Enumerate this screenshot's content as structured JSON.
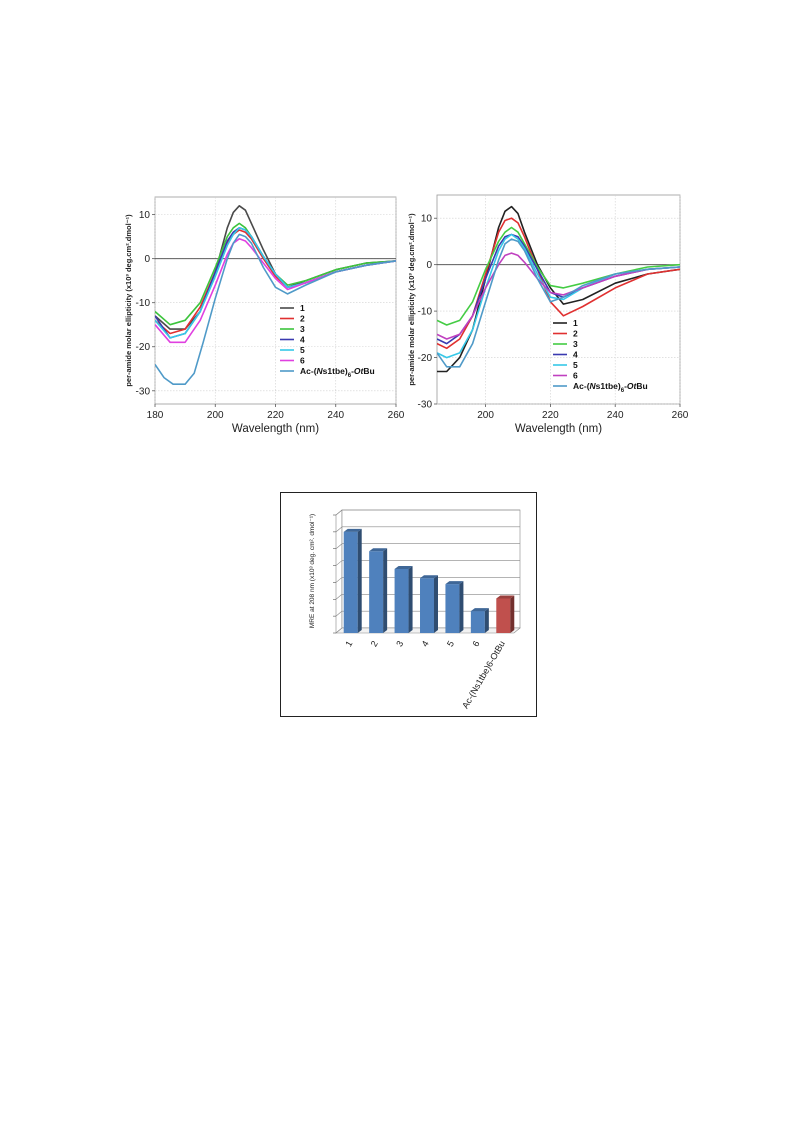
{
  "chart_data": [
    {
      "type": "line",
      "panel": "left",
      "xlabel": "Wavelength (nm)",
      "ylabel": "per-amide molar ellipticity (x10³ deg.cm².dmol⁻¹)",
      "xlim": [
        180,
        260
      ],
      "ylim": [
        -33,
        14
      ],
      "xticks": [
        180,
        200,
        220,
        240,
        260
      ],
      "yticks": [
        10,
        0,
        -10,
        -20,
        -30
      ],
      "xtick_labels": [
        "180",
        "200",
        "220",
        "240",
        "260"
      ],
      "ytick_labels": [
        "10",
        "0",
        "-10",
        "-20",
        "-30"
      ],
      "grid": true,
      "legend_position": "lower-center",
      "legend_labels": [
        "1",
        "2",
        "3",
        "4",
        "5",
        "6",
        "Ac-(Ns1tbe)6-OtBu"
      ],
      "series": [
        {
          "name": "1",
          "color": "#4a4a4a",
          "x": [
            180,
            185,
            190,
            195,
            200,
            204,
            206,
            208,
            210,
            212,
            216,
            220,
            224,
            230,
            240,
            250,
            260
          ],
          "y": [
            -13,
            -16,
            -16,
            -12,
            -3,
            7,
            10.5,
            12,
            11,
            8,
            2,
            -3.5,
            -6.5,
            -5,
            -2.5,
            -1,
            -0.5
          ]
        },
        {
          "name": "2",
          "color": "#e03030",
          "x": [
            180,
            185,
            190,
            195,
            200,
            204,
            206,
            208,
            210,
            212,
            216,
            220,
            224,
            230,
            240,
            250,
            260
          ],
          "y": [
            -14,
            -17,
            -16,
            -11,
            -3,
            3.5,
            5.5,
            6.5,
            6,
            4.5,
            0,
            -4,
            -6.5,
            -5.5,
            -3,
            -1.5,
            -0.5
          ]
        },
        {
          "name": "3",
          "color": "#3cc43c",
          "x": [
            180,
            185,
            190,
            195,
            200,
            204,
            206,
            208,
            210,
            212,
            216,
            220,
            224,
            230,
            240,
            250,
            260
          ],
          "y": [
            -12,
            -15,
            -14,
            -10,
            -2,
            5,
            7,
            8,
            7,
            5,
            0.5,
            -3.5,
            -6,
            -5,
            -2.5,
            -1,
            -0.5
          ]
        },
        {
          "name": "4",
          "color": "#3a3ab0",
          "x": [
            180,
            185,
            190,
            195,
            200,
            204,
            206,
            208,
            210,
            212,
            216,
            220,
            224,
            230,
            240,
            250,
            260
          ],
          "y": [
            -13,
            -18,
            -17,
            -12,
            -3,
            4,
            6,
            7,
            6.5,
            5,
            0.5,
            -3.5,
            -6.5,
            -5.5,
            -3,
            -1.5,
            -0.5
          ]
        },
        {
          "name": "5",
          "color": "#36c8e8",
          "x": [
            180,
            185,
            190,
            195,
            200,
            204,
            206,
            208,
            210,
            212,
            216,
            220,
            224,
            230,
            240,
            250,
            260
          ],
          "y": [
            -14,
            -18,
            -17,
            -12,
            -4,
            3,
            5.5,
            7,
            6.5,
            5,
            0.5,
            -3.5,
            -6.5,
            -5.5,
            -3,
            -1.5,
            -0.5
          ]
        },
        {
          "name": "6",
          "color": "#e040e0",
          "x": [
            180,
            185,
            190,
            195,
            200,
            204,
            206,
            208,
            210,
            212,
            216,
            220,
            224,
            230,
            240,
            250,
            260
          ],
          "y": [
            -15,
            -19,
            -19,
            -14,
            -6,
            1,
            3.5,
            4.5,
            4,
            2.5,
            -1,
            -4.5,
            -7,
            -5.5,
            -3,
            -1.5,
            -0.5
          ]
        },
        {
          "name": "Ac-(Ns1tbe)6-OtBu",
          "color": "#4f9ac8",
          "x": [
            180,
            183,
            186,
            190,
            193,
            196,
            200,
            204,
            206,
            208,
            210,
            212,
            216,
            220,
            224,
            230,
            240,
            250,
            260
          ],
          "y": [
            -24,
            -27,
            -28.5,
            -28.5,
            -26,
            -19,
            -9,
            0,
            3.5,
            5.5,
            5,
            3.5,
            -2,
            -6.5,
            -8,
            -6,
            -3,
            -1.5,
            -0.5
          ]
        }
      ]
    },
    {
      "type": "line",
      "panel": "right",
      "xlabel": "Wavelength (nm)",
      "ylabel": "per-amide molar ellipticity (x10³ deg.cm².dmol⁻¹)",
      "xlim": [
        185,
        260
      ],
      "ylim": [
        -30,
        15
      ],
      "xticks": [
        200,
        220,
        240,
        260
      ],
      "yticks": [
        10,
        0,
        -10,
        -20,
        -30
      ],
      "xtick_labels": [
        "200",
        "220",
        "240",
        "260"
      ],
      "ytick_labels": [
        "10",
        "0",
        "-10",
        "-20",
        "-30"
      ],
      "grid": true,
      "legend_position": "lower-center",
      "legend_labels": [
        "1",
        "2",
        "3",
        "4",
        "5",
        "6",
        "Ac-(Ns1tbe)6-OtBu"
      ],
      "series": [
        {
          "name": "1",
          "color": "#222222",
          "x": [
            185,
            188,
            192,
            196,
            200,
            204,
            206,
            208,
            210,
            212,
            216,
            220,
            224,
            230,
            240,
            250,
            260
          ],
          "y": [
            -23,
            -23,
            -20,
            -14,
            -3,
            8,
            11.5,
            12.5,
            11,
            7,
            0,
            -5,
            -8.5,
            -7.5,
            -4,
            -2,
            -1
          ]
        },
        {
          "name": "2",
          "color": "#e03030",
          "x": [
            185,
            188,
            192,
            196,
            200,
            204,
            206,
            208,
            210,
            212,
            216,
            220,
            224,
            230,
            240,
            250,
            260
          ],
          "y": [
            -17,
            -18,
            -16,
            -11,
            -2,
            7,
            9.5,
            10,
            9,
            6,
            -1,
            -8,
            -11,
            -9,
            -5,
            -2,
            -1
          ]
        },
        {
          "name": "3",
          "color": "#44cc44",
          "x": [
            185,
            188,
            192,
            196,
            200,
            204,
            206,
            208,
            210,
            212,
            216,
            220,
            224,
            230,
            240,
            250,
            260
          ],
          "y": [
            -12,
            -13,
            -12,
            -8,
            -1,
            5,
            7,
            8,
            7,
            4.5,
            -0.5,
            -4.5,
            -5,
            -4,
            -2,
            -0.5,
            0
          ]
        },
        {
          "name": "4",
          "color": "#3a3ab0",
          "x": [
            185,
            188,
            192,
            196,
            200,
            204,
            206,
            208,
            210,
            212,
            216,
            220,
            224,
            230,
            240,
            250,
            260
          ],
          "y": [
            -16,
            -17,
            -15,
            -11,
            -3,
            4,
            6,
            6.5,
            6,
            4,
            -1,
            -6,
            -7,
            -5,
            -2.5,
            -1,
            -0.5
          ]
        },
        {
          "name": "5",
          "color": "#36c8e8",
          "x": [
            185,
            188,
            192,
            196,
            200,
            204,
            206,
            208,
            210,
            212,
            216,
            220,
            224,
            230,
            240,
            250,
            260
          ],
          "y": [
            -19,
            -20,
            -19,
            -14,
            -5,
            3,
            5.5,
            6.5,
            5.5,
            3.5,
            -2,
            -7,
            -7.5,
            -5,
            -2,
            -1,
            -0.5
          ]
        },
        {
          "name": "6",
          "color": "#c040c0",
          "x": [
            185,
            188,
            192,
            196,
            200,
            204,
            206,
            208,
            210,
            212,
            216,
            220,
            224,
            230,
            240,
            250,
            260
          ],
          "y": [
            -15,
            -16,
            -15,
            -11,
            -5,
            0,
            2,
            2.5,
            2,
            0.5,
            -3,
            -6,
            -6.5,
            -5,
            -2.5,
            -1,
            -0.5
          ]
        },
        {
          "name": "Ac-(Ns1tbe)6-OtBu",
          "color": "#4f9ac8",
          "x": [
            185,
            188,
            192,
            196,
            200,
            204,
            206,
            208,
            210,
            212,
            216,
            220,
            224,
            230,
            240,
            250,
            260
          ],
          "y": [
            -19,
            -22,
            -22,
            -17,
            -8,
            1,
            4.5,
            5.5,
            5,
            3,
            -3,
            -8,
            -7,
            -4.5,
            -2,
            -1,
            -0.5
          ]
        }
      ]
    },
    {
      "type": "bar",
      "panel": "bottom",
      "ylabel": "MRE at 208 nm (x10³ deg. cm². dmol⁻¹)",
      "categories": [
        "1",
        "2",
        "3",
        "4",
        "5",
        "6",
        "Ac-(Ns1tbe)6-OtBu"
      ],
      "values": [
        12,
        9.7,
        7.6,
        6.5,
        5.8,
        2.6,
        4.1
      ],
      "ylim": [
        0,
        14
      ],
      "grid": true,
      "colors": [
        "#4f81bd",
        "#4f81bd",
        "#4f81bd",
        "#4f81bd",
        "#4f81bd",
        "#4f81bd",
        "#c0504d"
      ]
    }
  ]
}
